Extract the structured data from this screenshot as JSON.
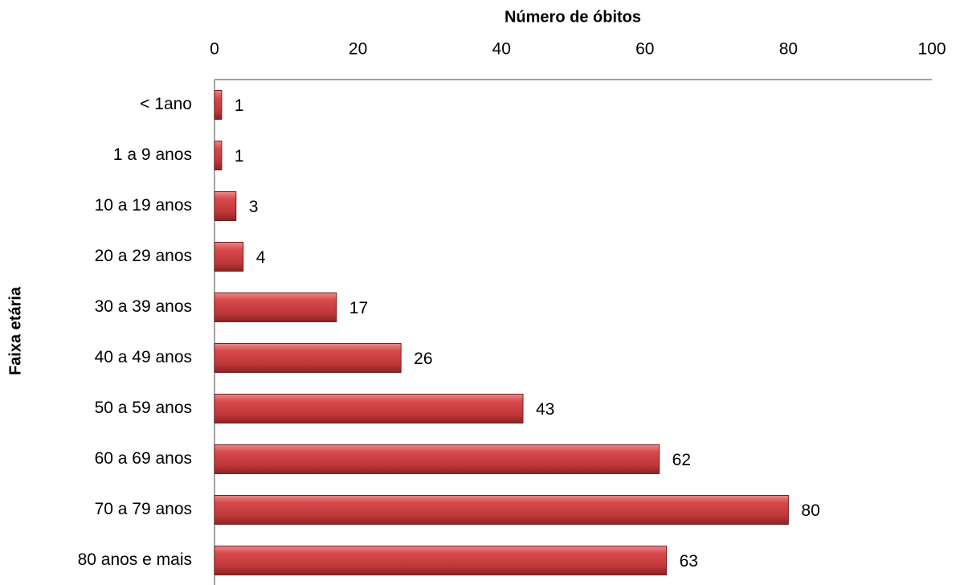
{
  "chart_data": {
    "type": "bar",
    "orientation": "horizontal",
    "x_label": "Número de óbitos",
    "y_label": "Faixa etária",
    "categories": [
      "< 1ano",
      "1 a 9 anos",
      "10 a 19 anos",
      "20 a 29 anos",
      "30 a 39 anos",
      "40 a 49 anos",
      "50 a 59 anos",
      "60 a 69 anos",
      "70 a 79 anos",
      "80 anos e mais"
    ],
    "values": [
      1,
      1,
      3,
      4,
      17,
      26,
      43,
      62,
      80,
      63
    ],
    "color": "#c0373a",
    "xlim": [
      0,
      100
    ],
    "xticks": [
      0,
      20,
      40,
      60,
      80,
      100
    ],
    "grid": false
  }
}
